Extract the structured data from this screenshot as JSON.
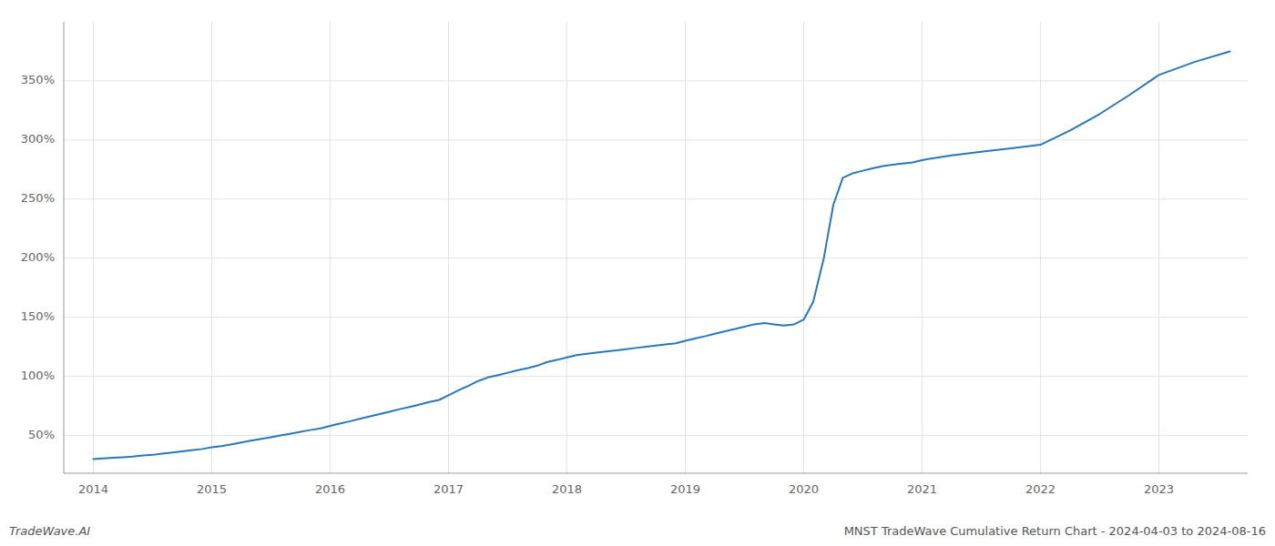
{
  "chart_data": {
    "type": "line",
    "title": "MNST TradeWave Cumulative Return Chart - 2024-04-03 to 2024-08-16",
    "annotations": [
      "TradeWave.AI"
    ],
    "color": "#2878b8",
    "grid": true,
    "x": [
      2014.0,
      2014.08,
      2014.17,
      2014.25,
      2014.33,
      2014.42,
      2014.5,
      2014.58,
      2014.67,
      2014.75,
      2014.83,
      2014.92,
      2015.0,
      2015.08,
      2015.17,
      2015.25,
      2015.33,
      2015.42,
      2015.5,
      2015.58,
      2015.67,
      2015.75,
      2015.83,
      2015.92,
      2016.0,
      2016.08,
      2016.17,
      2016.25,
      2016.33,
      2016.42,
      2016.5,
      2016.58,
      2016.67,
      2016.75,
      2016.83,
      2016.92,
      2017.0,
      2017.08,
      2017.17,
      2017.25,
      2017.33,
      2017.42,
      2017.5,
      2017.58,
      2017.67,
      2017.75,
      2017.83,
      2017.92,
      2018.0,
      2018.08,
      2018.17,
      2018.25,
      2018.33,
      2018.42,
      2018.5,
      2018.58,
      2018.67,
      2018.75,
      2018.83,
      2018.92,
      2019.0,
      2019.08,
      2019.17,
      2019.25,
      2019.33,
      2019.42,
      2019.5,
      2019.58,
      2019.67,
      2019.75,
      2019.83,
      2019.92,
      2020.0,
      2020.08,
      2020.17,
      2020.25,
      2020.33,
      2020.42,
      2020.5,
      2020.58,
      2020.67,
      2020.75,
      2020.83,
      2020.92,
      2021.0,
      2021.25,
      2021.5,
      2021.75,
      2022.0,
      2022.25,
      2022.5,
      2022.75,
      2023.0,
      2023.3,
      2023.6
    ],
    "values": [
      30,
      30.5,
      31,
      31.5,
      32,
      33,
      33.5,
      34.5,
      35.5,
      36.5,
      37.5,
      38.5,
      40,
      41,
      42.5,
      44,
      45.5,
      47,
      48.5,
      50,
      51.5,
      53,
      54.5,
      56,
      58,
      60,
      62,
      64,
      66,
      68,
      70,
      72,
      74,
      76,
      78,
      80,
      84,
      88,
      92,
      96,
      99,
      101,
      103,
      105,
      107,
      109,
      112,
      114,
      116,
      118,
      119,
      120,
      121,
      122,
      123,
      124,
      125,
      126,
      127,
      128,
      130,
      132,
      134,
      136,
      138,
      140,
      142,
      144,
      145,
      144,
      143,
      144,
      148,
      163,
      200,
      245,
      268,
      272,
      274,
      276,
      278,
      279,
      280,
      281,
      283,
      287,
      290,
      293,
      296,
      308,
      322,
      338,
      355,
      366,
      375
    ],
    "xlim": [
      2013.75,
      2023.75
    ],
    "ylim": [
      18,
      400
    ],
    "xticks": [
      2014,
      2015,
      2016,
      2017,
      2018,
      2019,
      2020,
      2021,
      2022,
      2023
    ],
    "yticks": [
      {
        "value": 50,
        "label": "50%"
      },
      {
        "value": 100,
        "label": "100%"
      },
      {
        "value": 150,
        "label": "150%"
      },
      {
        "value": 200,
        "label": "200%"
      },
      {
        "value": 250,
        "label": "250%"
      },
      {
        "value": 300,
        "label": "300%"
      },
      {
        "value": 350,
        "label": "350%"
      }
    ]
  }
}
